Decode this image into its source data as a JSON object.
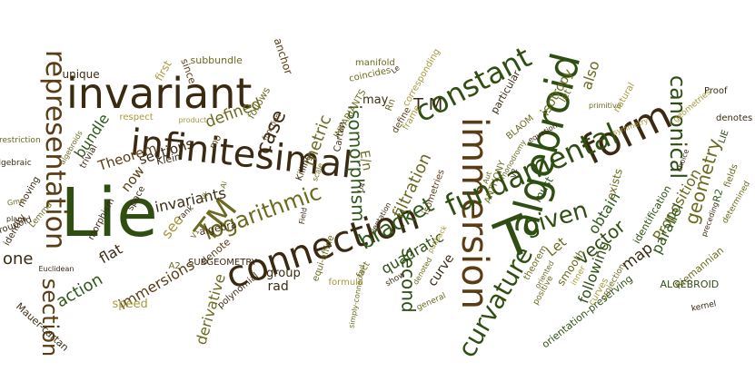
{
  "palette": {
    "dark_green": "#2f4f12",
    "olive": "#6b6a1e",
    "khaki": "#a79a3c",
    "brown": "#5a3d14",
    "dark_brown": "#3b2a12",
    "forest": "#2f5a1a"
  },
  "words": [
    {
      "text": "Lie",
      "color": "dark_green"
    },
    {
      "text": "invariant",
      "color": "dark_brown"
    },
    {
      "text": "infinitesimal",
      "color": "dark_brown"
    },
    {
      "text": "form",
      "color": "dark_brown"
    },
    {
      "text": "representation",
      "color": "brown"
    },
    {
      "text": "algebroid",
      "color": "dark_green"
    },
    {
      "text": "connection",
      "color": "dark_brown"
    },
    {
      "text": "immersion",
      "color": "brown"
    },
    {
      "text": "T",
      "color": "dark_green"
    },
    {
      "text": "fundamental",
      "color": "dark_green"
    },
    {
      "text": "given",
      "color": "dark_green"
    },
    {
      "text": "TM",
      "color": "olive"
    },
    {
      "text": "canonical",
      "color": "dark_green"
    },
    {
      "text": "section",
      "color": "brown"
    },
    {
      "text": "curvature",
      "color": "dark_green"
    },
    {
      "text": "logarithmic",
      "color": "olive"
    },
    {
      "text": "constant",
      "color": "dark_green"
    },
    {
      "text": "bracket",
      "color": "forest"
    },
    {
      "text": "geometry",
      "color": "olive"
    },
    {
      "text": "case",
      "color": "dark_brown"
    },
    {
      "text": "metric",
      "color": "olive"
    },
    {
      "text": "isomorphism",
      "color": "forest"
    },
    {
      "text": "E/n",
      "color": "olive"
    },
    {
      "text": "second",
      "color": "dark_green"
    },
    {
      "text": "filtration",
      "color": "olive"
    },
    {
      "text": "T M",
      "color": "dark_brown"
    },
    {
      "text": "bundle",
      "color": "forest"
    },
    {
      "text": "defined",
      "color": "olive"
    },
    {
      "text": "Proposition",
      "color": "olive"
    },
    {
      "text": "action",
      "color": "forest"
    },
    {
      "text": "derivative",
      "color": "olive"
    },
    {
      "text": "obtain",
      "color": "forest"
    },
    {
      "text": "vector",
      "color": "dark_green"
    },
    {
      "text": "Let",
      "color": "olive"
    },
    {
      "text": "map",
      "color": "dark_brown"
    },
    {
      "text": "parallel",
      "color": "forest"
    },
    {
      "text": "one",
      "color": "dark_brown"
    },
    {
      "text": "flat",
      "color": "dark_brown"
    },
    {
      "text": "immersions",
      "color": "brown"
    },
    {
      "text": "invariants",
      "color": "dark_brown"
    },
    {
      "text": "see",
      "color": "khaki"
    },
    {
      "text": "sections",
      "color": "dark_brown"
    },
    {
      "text": "Theorem",
      "color": "brown"
    },
    {
      "text": "now",
      "color": "brown"
    },
    {
      "text": "also",
      "color": "olive"
    },
    {
      "text": "following",
      "color": "dark_green"
    },
    {
      "text": "quadratic",
      "color": "dark_green"
    },
    {
      "text": "group",
      "color": "dark_brown"
    },
    {
      "text": "rad",
      "color": "dark_brown"
    },
    {
      "text": "curve",
      "color": "dark_brown"
    },
    {
      "text": "smooth",
      "color": "olive"
    },
    {
      "text": "must",
      "color": "dark_green"
    },
    {
      "text": "isotropy",
      "color": "olive"
    },
    {
      "text": "exists",
      "color": "olive"
    },
    {
      "text": "speed",
      "color": "khaki"
    },
    {
      "text": "Mauer-cartan",
      "color": "dark_brown"
    },
    {
      "text": "orientation-preserving",
      "color": "dark_green"
    },
    {
      "text": "identification",
      "color": "dark_green"
    },
    {
      "text": "Riemannian",
      "color": "olive"
    },
    {
      "text": "ALGEBROID",
      "color": "dark_green"
    },
    {
      "text": "may",
      "color": "dark_brown"
    },
    {
      "text": "anchor",
      "color": "brown"
    },
    {
      "text": "unique",
      "color": "dark_brown"
    },
    {
      "text": "first",
      "color": "khaki"
    },
    {
      "text": "since",
      "color": "brown"
    },
    {
      "text": "subbundle",
      "color": "olive"
    },
    {
      "text": "follows",
      "color": "olive"
    },
    {
      "text": "Killing",
      "color": "dark_brown"
    },
    {
      "text": "define",
      "color": "brown"
    },
    {
      "text": "particular",
      "color": "dark_brown"
    },
    {
      "text": "let",
      "color": "olive"
    },
    {
      "text": "denotes",
      "color": "dark_brown"
    },
    {
      "text": "Proof",
      "color": "dark_brown"
    },
    {
      "text": "LIE",
      "color": "dark_green"
    },
    {
      "text": "R2",
      "color": "forest"
    },
    {
      "text": "fields",
      "color": "olive"
    },
    {
      "text": "algebra",
      "color": "dark_brown"
    },
    {
      "text": "denote",
      "color": "brown"
    },
    {
      "text": "SUBGEOMETRY",
      "color": "dark_brown"
    },
    {
      "text": "polynomial",
      "color": "dark_brown"
    },
    {
      "text": "equi-affine",
      "color": "olive"
    },
    {
      "text": "formula",
      "color": "khaki"
    },
    {
      "text": "Klein",
      "color": "dark_brown"
    },
    {
      "text": "space",
      "color": "dark_brown"
    },
    {
      "text": "morphism",
      "color": "dark_brown"
    },
    {
      "text": "trivial",
      "color": "dark_brown"
    },
    {
      "text": "respect",
      "color": "khaki"
    },
    {
      "text": "ANTHONY",
      "color": "olive"
    },
    {
      "text": "BLAOM",
      "color": "olive"
    },
    {
      "text": "manifold",
      "color": "olive"
    },
    {
      "text": "coincides",
      "color": "olive"
    },
    {
      "text": "corresponding",
      "color": "khaki"
    },
    {
      "text": "INVARIANTS",
      "color": "olive"
    },
    {
      "text": "Cartan",
      "color": "dark_brown"
    },
    {
      "text": "frame",
      "color": "khaki"
    },
    {
      "text": "isometries",
      "color": "brown"
    },
    {
      "text": "fact",
      "color": "olive"
    },
    {
      "text": "theorem",
      "color": "olive"
    },
    {
      "text": "projection",
      "color": "olive"
    },
    {
      "text": "natural",
      "color": "khaki"
    },
    {
      "text": "curves",
      "color": "khaki"
    },
    {
      "text": "kernel",
      "color": "dark_brown"
    },
    {
      "text": "scale",
      "color": "olive"
    },
    {
      "text": "Field",
      "color": "dark_brown"
    },
    {
      "text": "rank",
      "color": "dark_brown"
    },
    {
      "text": "symmetry",
      "color": "khaki"
    },
    {
      "text": "geometries",
      "color": "khaki"
    },
    {
      "text": "moving",
      "color": "dark_brown"
    },
    {
      "text": "product",
      "color": "khaki"
    },
    {
      "text": "function",
      "color": "brown"
    },
    {
      "text": "groupoid",
      "color": "dark_brown"
    },
    {
      "text": "algebraic",
      "color": "dark_brown"
    },
    {
      "text": "Lemma",
      "color": "olive"
    },
    {
      "text": "pullback",
      "color": "khaki"
    },
    {
      "text": "show",
      "color": "dark_brown"
    },
    {
      "text": "positive",
      "color": "olive"
    },
    {
      "text": "inner",
      "color": "khaki"
    },
    {
      "text": "general",
      "color": "olive"
    },
    {
      "text": "preceding",
      "color": "dark_brown"
    },
    {
      "text": "determined",
      "color": "olive"
    },
    {
      "text": "choice",
      "color": "dark_brown"
    },
    {
      "text": "primitive",
      "color": "olive"
    },
    {
      "text": "oriented",
      "color": "olive"
    },
    {
      "text": "denoted",
      "color": "olive"
    },
    {
      "text": "simply-connected",
      "color": "olive"
    },
    {
      "text": "Euclidean",
      "color": "dark_brown"
    },
    {
      "text": "equation",
      "color": "dark_brown"
    },
    {
      "text": "orientation",
      "color": "dark_brown"
    },
    {
      "text": "monodromy",
      "color": "olive"
    },
    {
      "text": "restriction",
      "color": "olive"
    },
    {
      "text": "Gmo",
      "color": "olive"
    },
    {
      "text": "plane",
      "color": "dark_brown"
    },
    {
      "text": "identity",
      "color": "dark_brown"
    },
    {
      "text": "A2",
      "color": "olive"
    },
    {
      "text": "Rn",
      "color": "olive"
    },
    {
      "text": "mo",
      "color": "brown"
    },
    {
      "text": "Ai",
      "color": "olive"
    },
    {
      "text": "V2",
      "color": "dark_brown"
    },
    {
      "text": "V1",
      "color": "olive"
    },
    {
      "text": "U4",
      "color": "dark_brown"
    },
    {
      "text": "Aut",
      "color": "olive"
    },
    {
      "text": "Le",
      "color": "dark_brown"
    },
    {
      "text": "algebroids",
      "color": "olive"
    },
    {
      "text": "Vk",
      "color": "olive"
    },
    {
      "text": "theory",
      "color": "olive"
    }
  ]
}
